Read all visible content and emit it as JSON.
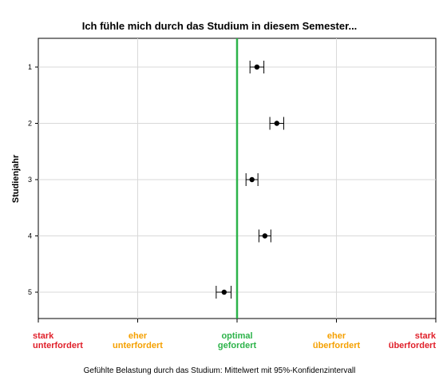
{
  "chart_data": {
    "type": "scatter",
    "title": "Ich fühle mich durch das Studium in diesem Semester...",
    "xlabel": "Gefühlte Belastung durch das Studium: Mittelwert mit 95%-Konfidenzintervall",
    "ylabel": "Studienjahr",
    "xlim": [
      -2,
      2
    ],
    "x_ticks": [
      {
        "value": -2,
        "lines": [
          "stark",
          "unterfordert"
        ],
        "color": "#e0202a"
      },
      {
        "value": -1,
        "lines": [
          "eher",
          "unterfordert"
        ],
        "color": "#f5a000"
      },
      {
        "value": 0,
        "lines": [
          "optimal",
          "gefordert"
        ],
        "color": "#2db34a"
      },
      {
        "value": 1,
        "lines": [
          "eher",
          "überfordert"
        ],
        "color": "#f5a000"
      },
      {
        "value": 2,
        "lines": [
          "stark",
          "überfordert"
        ],
        "color": "#e0202a"
      }
    ],
    "reference_line": {
      "x": 0,
      "color": "#2db34a"
    },
    "grid": true,
    "points": [
      {
        "category": "1",
        "mean": 0.2,
        "ci_low": 0.13,
        "ci_high": 0.27
      },
      {
        "category": "2",
        "mean": 0.4,
        "ci_low": 0.33,
        "ci_high": 0.47
      },
      {
        "category": "3",
        "mean": 0.15,
        "ci_low": 0.09,
        "ci_high": 0.21
      },
      {
        "category": "4",
        "mean": 0.28,
        "ci_low": 0.22,
        "ci_high": 0.34
      },
      {
        "category": "5",
        "mean": -0.13,
        "ci_low": -0.21,
        "ci_high": -0.06
      }
    ]
  }
}
